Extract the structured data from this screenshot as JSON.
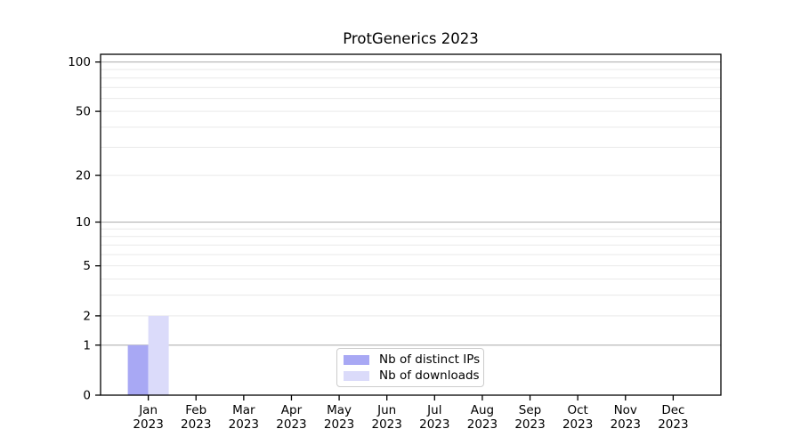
{
  "chart_data": {
    "type": "bar",
    "title": "ProtGenerics 2023",
    "categories": [
      "Jan",
      "Feb",
      "Mar",
      "Apr",
      "May",
      "Jun",
      "Jul",
      "Aug",
      "Sep",
      "Oct",
      "Nov",
      "Dec"
    ],
    "category_year": "2023",
    "series": [
      {
        "name": "Nb of distinct IPs",
        "color": "#a8a8f4",
        "values": [
          1,
          0,
          0,
          0,
          0,
          0,
          0,
          0,
          0,
          0,
          0,
          0
        ]
      },
      {
        "name": "Nb of downloads",
        "color": "#dbdbfa",
        "values": [
          2,
          0,
          0,
          0,
          0,
          0,
          0,
          0,
          0,
          0,
          0,
          0
        ]
      }
    ],
    "y_axis": {
      "scale": "log10(1+v)",
      "tick_labels": [
        "0",
        "1",
        "2",
        "5",
        "10",
        "20",
        "50",
        "100"
      ],
      "tick_values": [
        0,
        1,
        2,
        5,
        10,
        20,
        50,
        100
      ],
      "major_gridlines": [
        1,
        10,
        100
      ],
      "minor_gridlines": [
        2,
        3,
        4,
        5,
        6,
        7,
        8,
        9,
        20,
        30,
        40,
        50,
        60,
        70,
        80,
        90
      ],
      "range": [
        0,
        112
      ]
    },
    "x_axis": {
      "tick_count": 12
    },
    "legend": {
      "position": "inside-bottom-center",
      "entries": [
        "Nb of distinct IPs",
        "Nb of downloads"
      ]
    },
    "colors": {
      "background": "#ffffff",
      "axis": "#000000",
      "major_grid": "#b2b2b2",
      "minor_grid": "#e9e9e9",
      "tick_text": "#000000"
    }
  }
}
